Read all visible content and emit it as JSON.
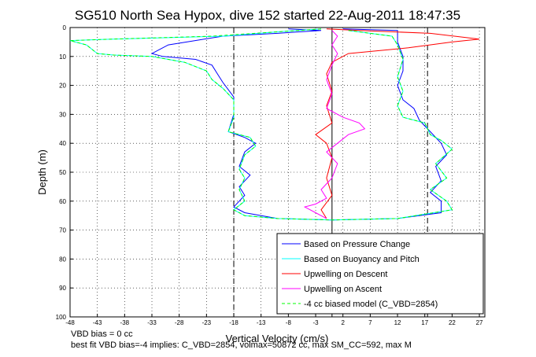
{
  "title": "SG510 North Sea Hypox, dive 152 started 22-Aug-2011 18:47:35",
  "footer": {
    "line1": "VBD bias = 0 cc",
    "line2": "best fit VBD bias=-4 implies: C_VBD=2854, volmax=50872 cc, max SM_CC=592, max M"
  },
  "chart_data": {
    "type": "line",
    "title": "SG510 North Sea Hypox, dive 152 started 22-Aug-2011 18:47:35",
    "xlabel": "Vertical Velocity (cm/s)",
    "ylabel": "Depth (m)",
    "xlim": [
      -48,
      28
    ],
    "ylim": [
      0,
      100
    ],
    "y_reversed": true,
    "grid": true,
    "xticks": [
      -48,
      -43,
      -38,
      -33,
      -28,
      -23,
      -18,
      -13,
      -8,
      -3,
      2,
      7,
      12,
      17,
      22,
      27
    ],
    "yticks": [
      0,
      10,
      20,
      30,
      40,
      50,
      60,
      70,
      80,
      90,
      100
    ],
    "legend_position": "bottom-right",
    "reference_lines": {
      "dashed_verticals": [
        -18,
        17.5
      ],
      "solid_vertical": 0
    },
    "series": [
      {
        "name": "Based on Pressure Change",
        "color": "#0000ff",
        "style": "solid",
        "points": [
          [
            -8,
            0.5
          ],
          [
            -2,
            1
          ],
          [
            -10,
            2
          ],
          [
            -20,
            3
          ],
          [
            -30,
            6
          ],
          [
            -33,
            9
          ],
          [
            -31,
            10
          ],
          [
            -25,
            11
          ],
          [
            -22,
            13
          ],
          [
            -21,
            16
          ],
          [
            -20,
            19
          ],
          [
            -18,
            24
          ],
          [
            -18,
            30
          ],
          [
            -19,
            36
          ],
          [
            -16,
            38
          ],
          [
            -14,
            40
          ],
          [
            -16,
            43
          ],
          [
            -17,
            48
          ],
          [
            -15,
            51
          ],
          [
            -17,
            55
          ],
          [
            -16,
            58
          ],
          [
            -18,
            62
          ],
          [
            -16,
            64
          ],
          [
            -10,
            66
          ],
          [
            0,
            66.5
          ],
          [
            12,
            66
          ],
          [
            20,
            64
          ],
          [
            20,
            60
          ],
          [
            18,
            57
          ],
          [
            20,
            53
          ],
          [
            19,
            48
          ],
          [
            21,
            44
          ],
          [
            20,
            40
          ],
          [
            18,
            36
          ],
          [
            16,
            32
          ],
          [
            15,
            28
          ],
          [
            13,
            25
          ],
          [
            12,
            20
          ],
          [
            13,
            15
          ],
          [
            13,
            10
          ],
          [
            12,
            5
          ],
          [
            12,
            1
          ],
          [
            2,
            0.5
          ]
        ]
      },
      {
        "name": "Based on Buoyancy and Pitch",
        "color": "#00ffff",
        "style": "solid",
        "points": [
          [
            -2,
            0.5
          ],
          [
            -10,
            1.5
          ],
          [
            -20,
            3
          ],
          [
            -40,
            4
          ],
          [
            -48,
            4.5
          ],
          [
            -45,
            6
          ],
          [
            -43,
            9
          ],
          [
            -40,
            9.5
          ],
          [
            -33,
            10
          ],
          [
            -27,
            12
          ],
          [
            -23,
            15
          ],
          [
            -22,
            18
          ],
          [
            -20,
            21
          ],
          [
            -18,
            25
          ],
          [
            -18,
            31
          ],
          [
            -19,
            36
          ],
          [
            -15,
            38
          ],
          [
            -14,
            41
          ],
          [
            -16,
            44
          ],
          [
            -17,
            49
          ],
          [
            -16,
            52
          ],
          [
            -17,
            56
          ],
          [
            -16,
            60
          ],
          [
            -18,
            63
          ],
          [
            -16,
            65
          ],
          [
            -10,
            66
          ],
          [
            0,
            66.5
          ],
          [
            12,
            66
          ],
          [
            22,
            63
          ],
          [
            21,
            60
          ],
          [
            18,
            56
          ],
          [
            21,
            52
          ],
          [
            19,
            47
          ],
          [
            22,
            42
          ],
          [
            20,
            39
          ],
          [
            18,
            37
          ],
          [
            17,
            33
          ],
          [
            13,
            31
          ],
          [
            12,
            27
          ],
          [
            13,
            22
          ],
          [
            12,
            17
          ],
          [
            13,
            11
          ],
          [
            12,
            6
          ],
          [
            11,
            3
          ],
          [
            3,
            1
          ]
        ]
      },
      {
        "name": "Upwelling on Descent",
        "color": "#ff0000",
        "style": "solid",
        "points": [
          [
            -1,
            0.5
          ],
          [
            5,
            1
          ],
          [
            18,
            2
          ],
          [
            27,
            4
          ],
          [
            22,
            5
          ],
          [
            14,
            7
          ],
          [
            3,
            9
          ],
          [
            0,
            12
          ],
          [
            -1,
            16
          ],
          [
            0,
            22
          ],
          [
            -1,
            27
          ],
          [
            0,
            33
          ],
          [
            -3,
            37
          ],
          [
            -1,
            40
          ],
          [
            0,
            45
          ],
          [
            -1,
            52
          ],
          [
            0,
            58
          ],
          [
            -2,
            63
          ],
          [
            -1,
            66
          ]
        ]
      },
      {
        "name": "Upwelling on Ascent",
        "color": "#ff00ff",
        "style": "solid",
        "points": [
          [
            0,
            1
          ],
          [
            1,
            3
          ],
          [
            0,
            6
          ],
          [
            1,
            9
          ],
          [
            0,
            13
          ],
          [
            -1,
            18
          ],
          [
            0,
            23
          ],
          [
            -1,
            28
          ],
          [
            2,
            31
          ],
          [
            5,
            33
          ],
          [
            6,
            35
          ],
          [
            3,
            37
          ],
          [
            1,
            40
          ],
          [
            -1,
            43
          ],
          [
            1,
            47
          ],
          [
            0,
            52
          ],
          [
            -2,
            56
          ],
          [
            -1,
            59
          ],
          [
            -3,
            61
          ],
          [
            -5,
            62
          ],
          [
            -3,
            64
          ],
          [
            -1,
            66
          ]
        ]
      },
      {
        "name": "-4 cc biased model (C_VBD=2854)",
        "color": "#00ff00",
        "style": "dashed",
        "points": [
          [
            -2,
            0.5
          ],
          [
            -10,
            1.5
          ],
          [
            -22,
            3
          ],
          [
            -40,
            4
          ],
          [
            -48,
            4.5
          ],
          [
            -45,
            6
          ],
          [
            -43,
            9
          ],
          [
            -40,
            9.5
          ],
          [
            -33,
            10
          ],
          [
            -27,
            12
          ],
          [
            -23,
            15
          ],
          [
            -22,
            18
          ],
          [
            -20,
            21
          ],
          [
            -18,
            25
          ],
          [
            -18,
            31
          ],
          [
            -19,
            36
          ],
          [
            -15,
            38
          ],
          [
            -14,
            41
          ],
          [
            -16,
            44
          ],
          [
            -17,
            49
          ],
          [
            -16,
            52
          ],
          [
            -17,
            56
          ],
          [
            -16,
            60
          ],
          [
            -18,
            63
          ],
          [
            -16,
            65
          ],
          [
            -10,
            66
          ],
          [
            0,
            66.5
          ],
          [
            12,
            66
          ],
          [
            22,
            63
          ],
          [
            21,
            60
          ],
          [
            18,
            56
          ],
          [
            21,
            52
          ],
          [
            19,
            47
          ],
          [
            22,
            42
          ],
          [
            20,
            39
          ],
          [
            18,
            37
          ],
          [
            17,
            33
          ],
          [
            13,
            31
          ],
          [
            12,
            27
          ],
          [
            13,
            22
          ],
          [
            12,
            17
          ],
          [
            13,
            11
          ],
          [
            12,
            6
          ],
          [
            11,
            3
          ],
          [
            3,
            1
          ]
        ]
      }
    ]
  }
}
